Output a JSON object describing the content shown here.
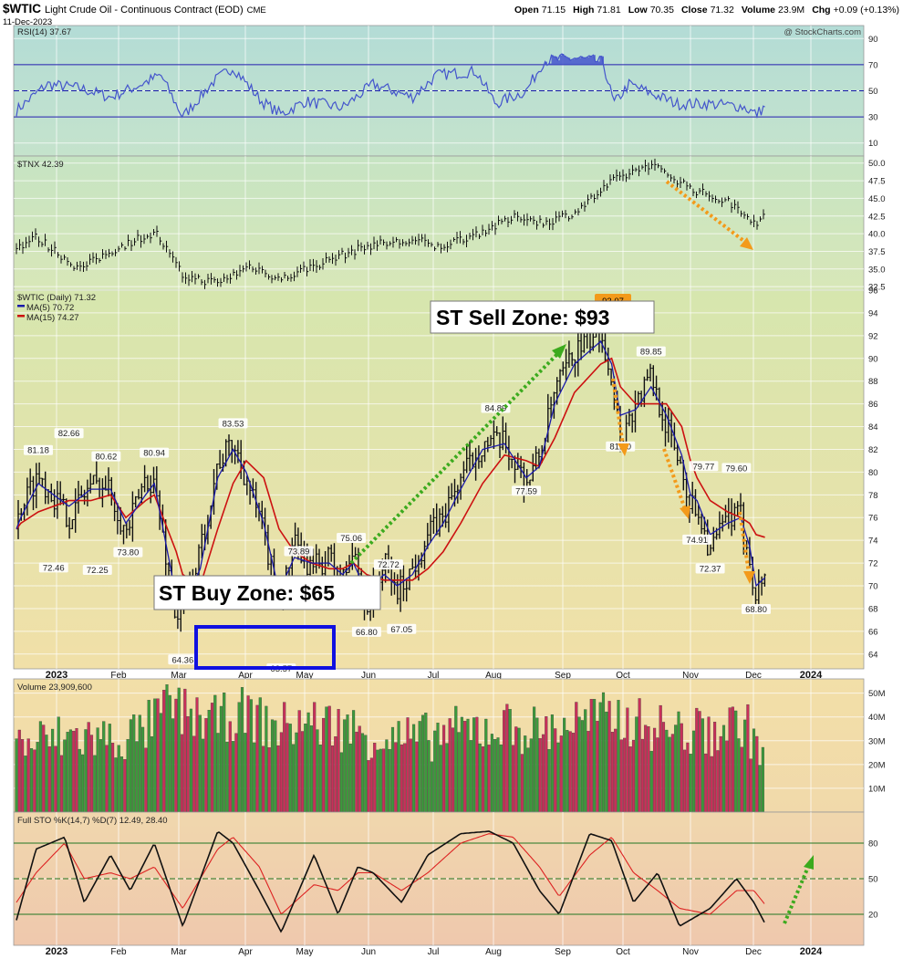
{
  "header": {
    "symbol": "$WTIC",
    "title": "Light Crude Oil - Continuous Contract (EOD)",
    "exchange": "CME",
    "date": "11-Dec-2023",
    "open_label": "Open",
    "open": "71.15",
    "high_label": "High",
    "high": "71.81",
    "low_label": "Low",
    "low": "70.35",
    "close_label": "Close",
    "close": "71.32",
    "volume_label": "Volume",
    "volume": "23.9M",
    "chg_label": "Chg",
    "chg": "+0.09 (+0.13%)",
    "watermark": "@ StockCharts.com"
  },
  "colors": {
    "price_bar": "#111111",
    "ma5": "#1a1aaa",
    "ma15": "#cc1111",
    "rsi_line": "#4455cc",
    "vol_up": "#3c9a3c",
    "vol_down": "#c8305a",
    "sto_k": "#111111",
    "sto_d": "#dd2222",
    "buy_box": "#1010e0",
    "green_arrow": "#3caa1e",
    "orange_arrow": "#f39a1a"
  },
  "x_axis": {
    "labels": [
      "2023",
      "Feb",
      "Mar",
      "Apr",
      "May",
      "Jun",
      "Jul",
      "Aug",
      "Sep",
      "Oct",
      "Nov",
      "Dec",
      "2024"
    ]
  },
  "annotations": {
    "sell_zone": "ST Sell Zone: $93",
    "buy_zone": "ST Buy Zone: $65",
    "sell_badge": "93.07"
  },
  "chart_data": [
    {
      "type": "line",
      "name": "rsi",
      "legend": "RSI(14) 37.67",
      "y_ticks": [
        90,
        70,
        50,
        30,
        10
      ],
      "ylim": [
        0,
        100
      ],
      "levels": [
        70,
        50,
        30
      ],
      "x": [
        "2023-01-03",
        "2023-01-17",
        "2023-02-01",
        "2023-02-15",
        "2023-03-01",
        "2023-03-10",
        "2023-03-20",
        "2023-04-03",
        "2023-04-12",
        "2023-04-25",
        "2023-05-04",
        "2023-05-15",
        "2023-06-01",
        "2023-06-15",
        "2023-07-03",
        "2023-07-14",
        "2023-08-01",
        "2023-08-10",
        "2023-08-24",
        "2023-09-01",
        "2023-09-15",
        "2023-09-28",
        "2023-10-03",
        "2023-10-10",
        "2023-10-20",
        "2023-11-01",
        "2023-11-15",
        "2023-12-01",
        "2023-12-07",
        "2023-12-11"
      ],
      "values": [
        35,
        55,
        52,
        45,
        55,
        62,
        30,
        57,
        68,
        42,
        32,
        42,
        37,
        55,
        45,
        62,
        65,
        40,
        50,
        73,
        75,
        72,
        40,
        55,
        48,
        40,
        40,
        38,
        32,
        37.67
      ]
    },
    {
      "type": "line",
      "name": "tnx",
      "legend": "$TNX 42.39",
      "y_ticks": [
        50.0,
        47.5,
        45.0,
        42.5,
        40.0,
        37.5,
        35.0,
        32.5
      ],
      "ylim": [
        32,
        51
      ],
      "x": [
        "2023-01-03",
        "2023-01-12",
        "2023-02-01",
        "2023-02-15",
        "2023-03-01",
        "2023-03-08",
        "2023-03-20",
        "2023-04-05",
        "2023-04-20",
        "2023-05-04",
        "2023-05-15",
        "2023-06-01",
        "2023-06-15",
        "2023-07-06",
        "2023-07-14",
        "2023-08-01",
        "2023-08-21",
        "2023-09-01",
        "2023-09-15",
        "2023-10-03",
        "2023-10-19",
        "2023-10-27",
        "2023-11-10",
        "2023-11-24",
        "2023-12-01",
        "2023-12-07",
        "2023-12-11"
      ],
      "values": [
        38.0,
        39.5,
        35.0,
        37.5,
        39.5,
        40.0,
        34.0,
        33.0,
        35.5,
        33.5,
        35.0,
        37.0,
        38.5,
        39.0,
        38.0,
        40.0,
        42.5,
        41.5,
        43.0,
        47.5,
        49.8,
        48.5,
        46.0,
        44.5,
        43.2,
        41.5,
        42.39
      ]
    },
    {
      "type": "line",
      "name": "wtic",
      "legend": "$WTIC (Daily) 71.32",
      "series_names": [
        "MA(5) 70.72",
        "MA(15) 74.27"
      ],
      "y_ticks": [
        96,
        94,
        92,
        90,
        88,
        86,
        84,
        82,
        80,
        78,
        76,
        74,
        72,
        70,
        68,
        66,
        64
      ],
      "ylim": [
        62.7,
        96
      ],
      "x": [
        "2023-01-03",
        "2023-01-05",
        "2023-01-13",
        "2023-01-27",
        "2023-02-06",
        "2023-02-15",
        "2023-02-22",
        "2023-03-03",
        "2023-03-07",
        "2023-03-17",
        "2023-03-20",
        "2023-03-28",
        "2023-04-05",
        "2023-04-12",
        "2023-04-18",
        "2023-04-26",
        "2023-05-03",
        "2023-05-10",
        "2023-05-18",
        "2023-05-26",
        "2023-06-01",
        "2023-06-06",
        "2023-06-12",
        "2023-06-20",
        "2023-06-26",
        "2023-07-03",
        "2023-07-10",
        "2023-07-17",
        "2023-07-25",
        "2023-08-04",
        "2023-08-14",
        "2023-08-24",
        "2023-08-30",
        "2023-09-06",
        "2023-09-15",
        "2023-09-27",
        "2023-10-02",
        "2023-10-06",
        "2023-10-13",
        "2023-10-20",
        "2023-10-27",
        "2023-11-03",
        "2023-11-07",
        "2023-11-10",
        "2023-11-16",
        "2023-11-24",
        "2023-11-30",
        "2023-12-04",
        "2023-12-07",
        "2023-12-11"
      ],
      "close": [
        75.0,
        77.0,
        79.8,
        76.0,
        79.0,
        78.5,
        74.5,
        79.5,
        79.0,
        67.0,
        68.0,
        73.0,
        80.8,
        82.5,
        79.5,
        74.5,
        68.5,
        73.5,
        71.5,
        72.5,
        70.5,
        73.0,
        68.0,
        72.0,
        69.5,
        71.5,
        74.5,
        76.0,
        79.5,
        82.5,
        82.5,
        79.0,
        81.5,
        87.0,
        90.5,
        92.5,
        88.5,
        83.0,
        86.0,
        88.5,
        84.0,
        80.5,
        77.0,
        77.0,
        73.0,
        76.0,
        76.0,
        72.5,
        69.0,
        71.32
      ],
      "high": [
        76.5,
        78.0,
        81.2,
        77.0,
        80.6,
        80.0,
        76.0,
        80.9,
        81.0,
        68.5,
        69.5,
        74.0,
        81.5,
        83.5,
        80.5,
        76.0,
        69.5,
        74.0,
        72.5,
        73.8,
        73.0,
        75.0,
        69.5,
        73.0,
        70.5,
        72.7,
        75.5,
        77.0,
        80.5,
        84.9,
        84.0,
        80.5,
        82.5,
        88.0,
        91.5,
        93.1,
        89.5,
        84.0,
        87.5,
        89.8,
        85.0,
        82.0,
        78.0,
        78.0,
        74.0,
        77.5,
        79.6,
        73.5,
        70.5,
        71.8
      ],
      "low": [
        73.5,
        75.0,
        78.0,
        74.5,
        77.5,
        77.0,
        72.5,
        78.0,
        77.5,
        65.0,
        64.4,
        71.0,
        79.5,
        80.5,
        77.5,
        73.0,
        63.6,
        71.0,
        70.0,
        71.0,
        69.0,
        71.0,
        66.8,
        70.5,
        67.0,
        70.0,
        73.0,
        75.0,
        78.0,
        81.5,
        80.5,
        77.6,
        80.0,
        85.0,
        89.0,
        91.0,
        86.5,
        81.5,
        84.0,
        86.5,
        82.0,
        79.0,
        75.5,
        74.9,
        72.4,
        74.5,
        75.0,
        71.0,
        68.8,
        70.35
      ],
      "ma5": [
        75.0,
        76.0,
        79.0,
        77.0,
        78.5,
        78.5,
        75.5,
        78.0,
        79.0,
        69.0,
        68.0,
        71.5,
        79.5,
        82.0,
        80.0,
        75.5,
        69.5,
        72.5,
        72.0,
        72.0,
        71.0,
        72.0,
        69.5,
        71.0,
        70.0,
        71.0,
        73.5,
        75.5,
        78.5,
        82.0,
        82.5,
        79.5,
        80.5,
        86.0,
        89.5,
        91.5,
        89.5,
        85.0,
        85.5,
        87.5,
        85.0,
        81.5,
        78.0,
        77.5,
        74.5,
        75.5,
        76.0,
        73.5,
        70.0,
        70.72
      ],
      "ma15": [
        75.0,
        75.5,
        76.5,
        77.5,
        77.5,
        78.0,
        76.0,
        77.5,
        78.0,
        73.0,
        71.0,
        70.0,
        75.0,
        79.0,
        81.0,
        79.5,
        75.0,
        73.0,
        72.0,
        71.5,
        71.5,
        72.0,
        71.0,
        70.5,
        70.5,
        70.5,
        71.5,
        73.0,
        75.5,
        79.0,
        81.5,
        81.0,
        80.5,
        83.0,
        87.0,
        89.5,
        90.0,
        87.5,
        86.0,
        86.0,
        86.0,
        84.0,
        81.0,
        79.5,
        77.5,
        76.5,
        76.0,
        75.5,
        74.5,
        74.27
      ],
      "labels": [
        {
          "x": "2023-01-13",
          "value": 81.18,
          "text": "81.18"
        },
        {
          "x": "2023-01-20",
          "value": 72.46,
          "text": "72.46"
        },
        {
          "x": "2023-01-27",
          "value": 82.66,
          "text": "82.66"
        },
        {
          "x": "2023-02-09",
          "value": 72.25,
          "text": "72.25"
        },
        {
          "x": "2023-02-13",
          "value": 80.62,
          "text": "80.62"
        },
        {
          "x": "2023-02-23",
          "value": 73.8,
          "text": "73.80"
        },
        {
          "x": "2023-03-07",
          "value": 80.94,
          "text": "80.94"
        },
        {
          "x": "2023-03-20",
          "value": 64.36,
          "text": "64.36"
        },
        {
          "x": "2023-04-12",
          "value": 83.53,
          "text": "83.53"
        },
        {
          "x": "2023-05-04",
          "value": 63.57,
          "text": "63.57"
        },
        {
          "x": "2023-05-12",
          "value": 73.89,
          "text": "73.89"
        },
        {
          "x": "2023-06-05",
          "value": 75.06,
          "text": "75.06"
        },
        {
          "x": "2023-06-12",
          "value": 66.8,
          "text": "66.80"
        },
        {
          "x": "2023-06-22",
          "value": 72.72,
          "text": "72.72"
        },
        {
          "x": "2023-06-28",
          "value": 67.05,
          "text": "67.05"
        },
        {
          "x": "2023-08-10",
          "value": 84.89,
          "text": "84.89"
        },
        {
          "x": "2023-08-24",
          "value": 77.59,
          "text": "77.59"
        },
        {
          "x": "2023-10-06",
          "value": 81.5,
          "text": "81.50"
        },
        {
          "x": "2023-10-20",
          "value": 89.85,
          "text": "89.85"
        },
        {
          "x": "2023-11-10",
          "value": 74.91,
          "text": "74.91"
        },
        {
          "x": "2023-11-13",
          "value": 79.77,
          "text": "79.77"
        },
        {
          "x": "2023-11-16",
          "value": 72.37,
          "text": "72.37"
        },
        {
          "x": "2023-11-28",
          "value": 79.6,
          "text": "79.60"
        },
        {
          "x": "2023-12-07",
          "value": 68.8,
          "text": "68.80"
        }
      ]
    },
    {
      "type": "bar",
      "name": "volume",
      "legend": "Volume 23,909,600",
      "y_ticks": [
        "50M",
        "40M",
        "30M",
        "20M",
        "10M"
      ],
      "y_tick_values": [
        50,
        40,
        30,
        20,
        10
      ],
      "ylim": [
        0,
        56
      ],
      "x": [
        "2023-01-03",
        "2023-01-17",
        "2023-02-01",
        "2023-02-15",
        "2023-03-01",
        "2023-03-13",
        "2023-03-20",
        "2023-04-03",
        "2023-04-17",
        "2023-05-01",
        "2023-05-15",
        "2023-06-01",
        "2023-06-15",
        "2023-07-03",
        "2023-07-17",
        "2023-08-01",
        "2023-08-15",
        "2023-09-01",
        "2023-09-15",
        "2023-10-02",
        "2023-10-16",
        "2023-11-01",
        "2023-11-15",
        "2023-12-01",
        "2023-12-11"
      ],
      "values": [
        28,
        30,
        32,
        30,
        33,
        45,
        42,
        38,
        42,
        35,
        38,
        36,
        32,
        30,
        33,
        35,
        36,
        34,
        38,
        40,
        37,
        34,
        33,
        38,
        23.9
      ]
    },
    {
      "type": "line",
      "name": "stochastic",
      "legend": "Full STO %K(14,7) %D(7) 12.49, 28.40",
      "series_names": [
        "%K 12.49",
        "%D 28.40"
      ],
      "y_ticks": [
        80,
        50,
        20
      ],
      "ylim": [
        0,
        100
      ],
      "levels": [
        80,
        50,
        20
      ],
      "x": [
        "2023-01-03",
        "2023-01-12",
        "2023-01-25",
        "2023-02-03",
        "2023-02-15",
        "2023-02-24",
        "2023-03-07",
        "2023-03-20",
        "2023-04-05",
        "2023-04-12",
        "2023-04-24",
        "2023-05-04",
        "2023-05-19",
        "2023-05-30",
        "2023-06-08",
        "2023-06-15",
        "2023-06-28",
        "2023-07-10",
        "2023-07-25",
        "2023-08-07",
        "2023-08-18",
        "2023-08-30",
        "2023-09-08",
        "2023-09-22",
        "2023-10-02",
        "2023-10-12",
        "2023-10-23",
        "2023-11-02",
        "2023-11-16",
        "2023-11-28",
        "2023-12-06",
        "2023-12-11"
      ],
      "k": [
        15,
        75,
        85,
        30,
        70,
        40,
        80,
        10,
        90,
        80,
        40,
        5,
        70,
        20,
        60,
        55,
        30,
        70,
        88,
        90,
        80,
        40,
        20,
        88,
        82,
        30,
        55,
        10,
        25,
        50,
        30,
        12.49
      ],
      "d": [
        30,
        55,
        80,
        50,
        55,
        50,
        60,
        25,
        75,
        85,
        60,
        20,
        45,
        40,
        55,
        55,
        40,
        55,
        80,
        88,
        85,
        60,
        35,
        70,
        85,
        55,
        40,
        25,
        20,
        40,
        40,
        28.4
      ]
    }
  ]
}
